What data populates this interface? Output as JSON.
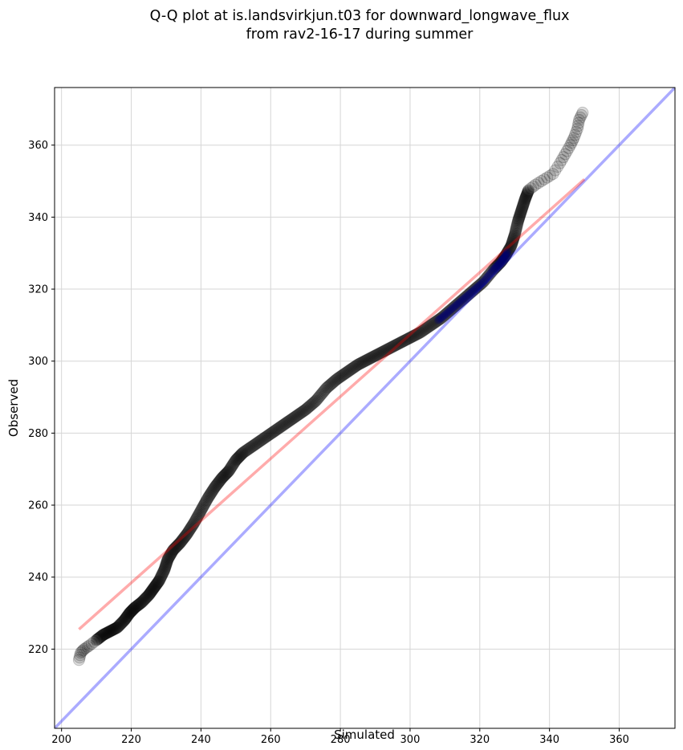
{
  "chart_data": {
    "type": "scatter",
    "title_lines": [
      "Q-Q plot at is.landsvirkjun.t03 for downward_longwave_flux",
      "from rav2-16-17 during summer"
    ],
    "xlabel": "Simulated",
    "ylabel": "Observed",
    "xlim": [
      198,
      376
    ],
    "ylim": [
      198,
      376
    ],
    "xticks": [
      200,
      220,
      240,
      260,
      280,
      300,
      320,
      340,
      360
    ],
    "yticks": [
      220,
      240,
      260,
      280,
      300,
      320,
      340,
      360
    ],
    "grid": true,
    "quantile_curve": [
      [
        205,
        217
      ],
      [
        205.5,
        219
      ],
      [
        206.5,
        220
      ],
      [
        208,
        221
      ],
      [
        210,
        222.5
      ],
      [
        212,
        224
      ],
      [
        214,
        225
      ],
      [
        216,
        226
      ],
      [
        218,
        228
      ],
      [
        219.5,
        230
      ],
      [
        221,
        231.5
      ],
      [
        223,
        233
      ],
      [
        225,
        235
      ],
      [
        226.5,
        237
      ],
      [
        228,
        239
      ],
      [
        229.5,
        242
      ],
      [
        230.5,
        245
      ],
      [
        232,
        247.5
      ],
      [
        234,
        249.5
      ],
      [
        236,
        252
      ],
      [
        238,
        255
      ],
      [
        240,
        258.5
      ],
      [
        242,
        262
      ],
      [
        244,
        265
      ],
      [
        246,
        267.5
      ],
      [
        248,
        269.5
      ],
      [
        250,
        272.5
      ],
      [
        252,
        274.5
      ],
      [
        255,
        276.5
      ],
      [
        258,
        278.5
      ],
      [
        261,
        280.5
      ],
      [
        264,
        282.5
      ],
      [
        267,
        284.5
      ],
      [
        270,
        286.5
      ],
      [
        273,
        289
      ],
      [
        276,
        292.5
      ],
      [
        279,
        295
      ],
      [
        282,
        297
      ],
      [
        285,
        299
      ],
      [
        288,
        300.5
      ],
      [
        291,
        302
      ],
      [
        294,
        303.5
      ],
      [
        297,
        305
      ],
      [
        300,
        306.5
      ],
      [
        303,
        308
      ],
      [
        306,
        310
      ],
      [
        309,
        312
      ],
      [
        312,
        314.5
      ],
      [
        315,
        317
      ],
      [
        318,
        319.5
      ],
      [
        321,
        322
      ],
      [
        324,
        325.5
      ],
      [
        326,
        327.5
      ],
      [
        327.5,
        329.5
      ],
      [
        329,
        332
      ],
      [
        330,
        335
      ],
      [
        331,
        339
      ],
      [
        332,
        342
      ],
      [
        333,
        345
      ],
      [
        334,
        347.5
      ],
      [
        336,
        349
      ],
      [
        338.5,
        350.5
      ],
      [
        341,
        352
      ],
      [
        343,
        355
      ],
      [
        344.5,
        357.5
      ],
      [
        346,
        360
      ],
      [
        347,
        362
      ],
      [
        348,
        364.5
      ],
      [
        348.5,
        367
      ],
      [
        349.5,
        369
      ]
    ],
    "series": [
      {
        "name": "one-to-one line",
        "color": "#0000ff",
        "x": [
          198,
          376
        ],
        "y": [
          198,
          376
        ]
      },
      {
        "name": "fitted line",
        "color": "#ff0000",
        "x": [
          205,
          350
        ],
        "y": [
          225.5,
          350.5
        ]
      }
    ],
    "marker_color": "#000000",
    "highlight_color": "#00007a"
  }
}
